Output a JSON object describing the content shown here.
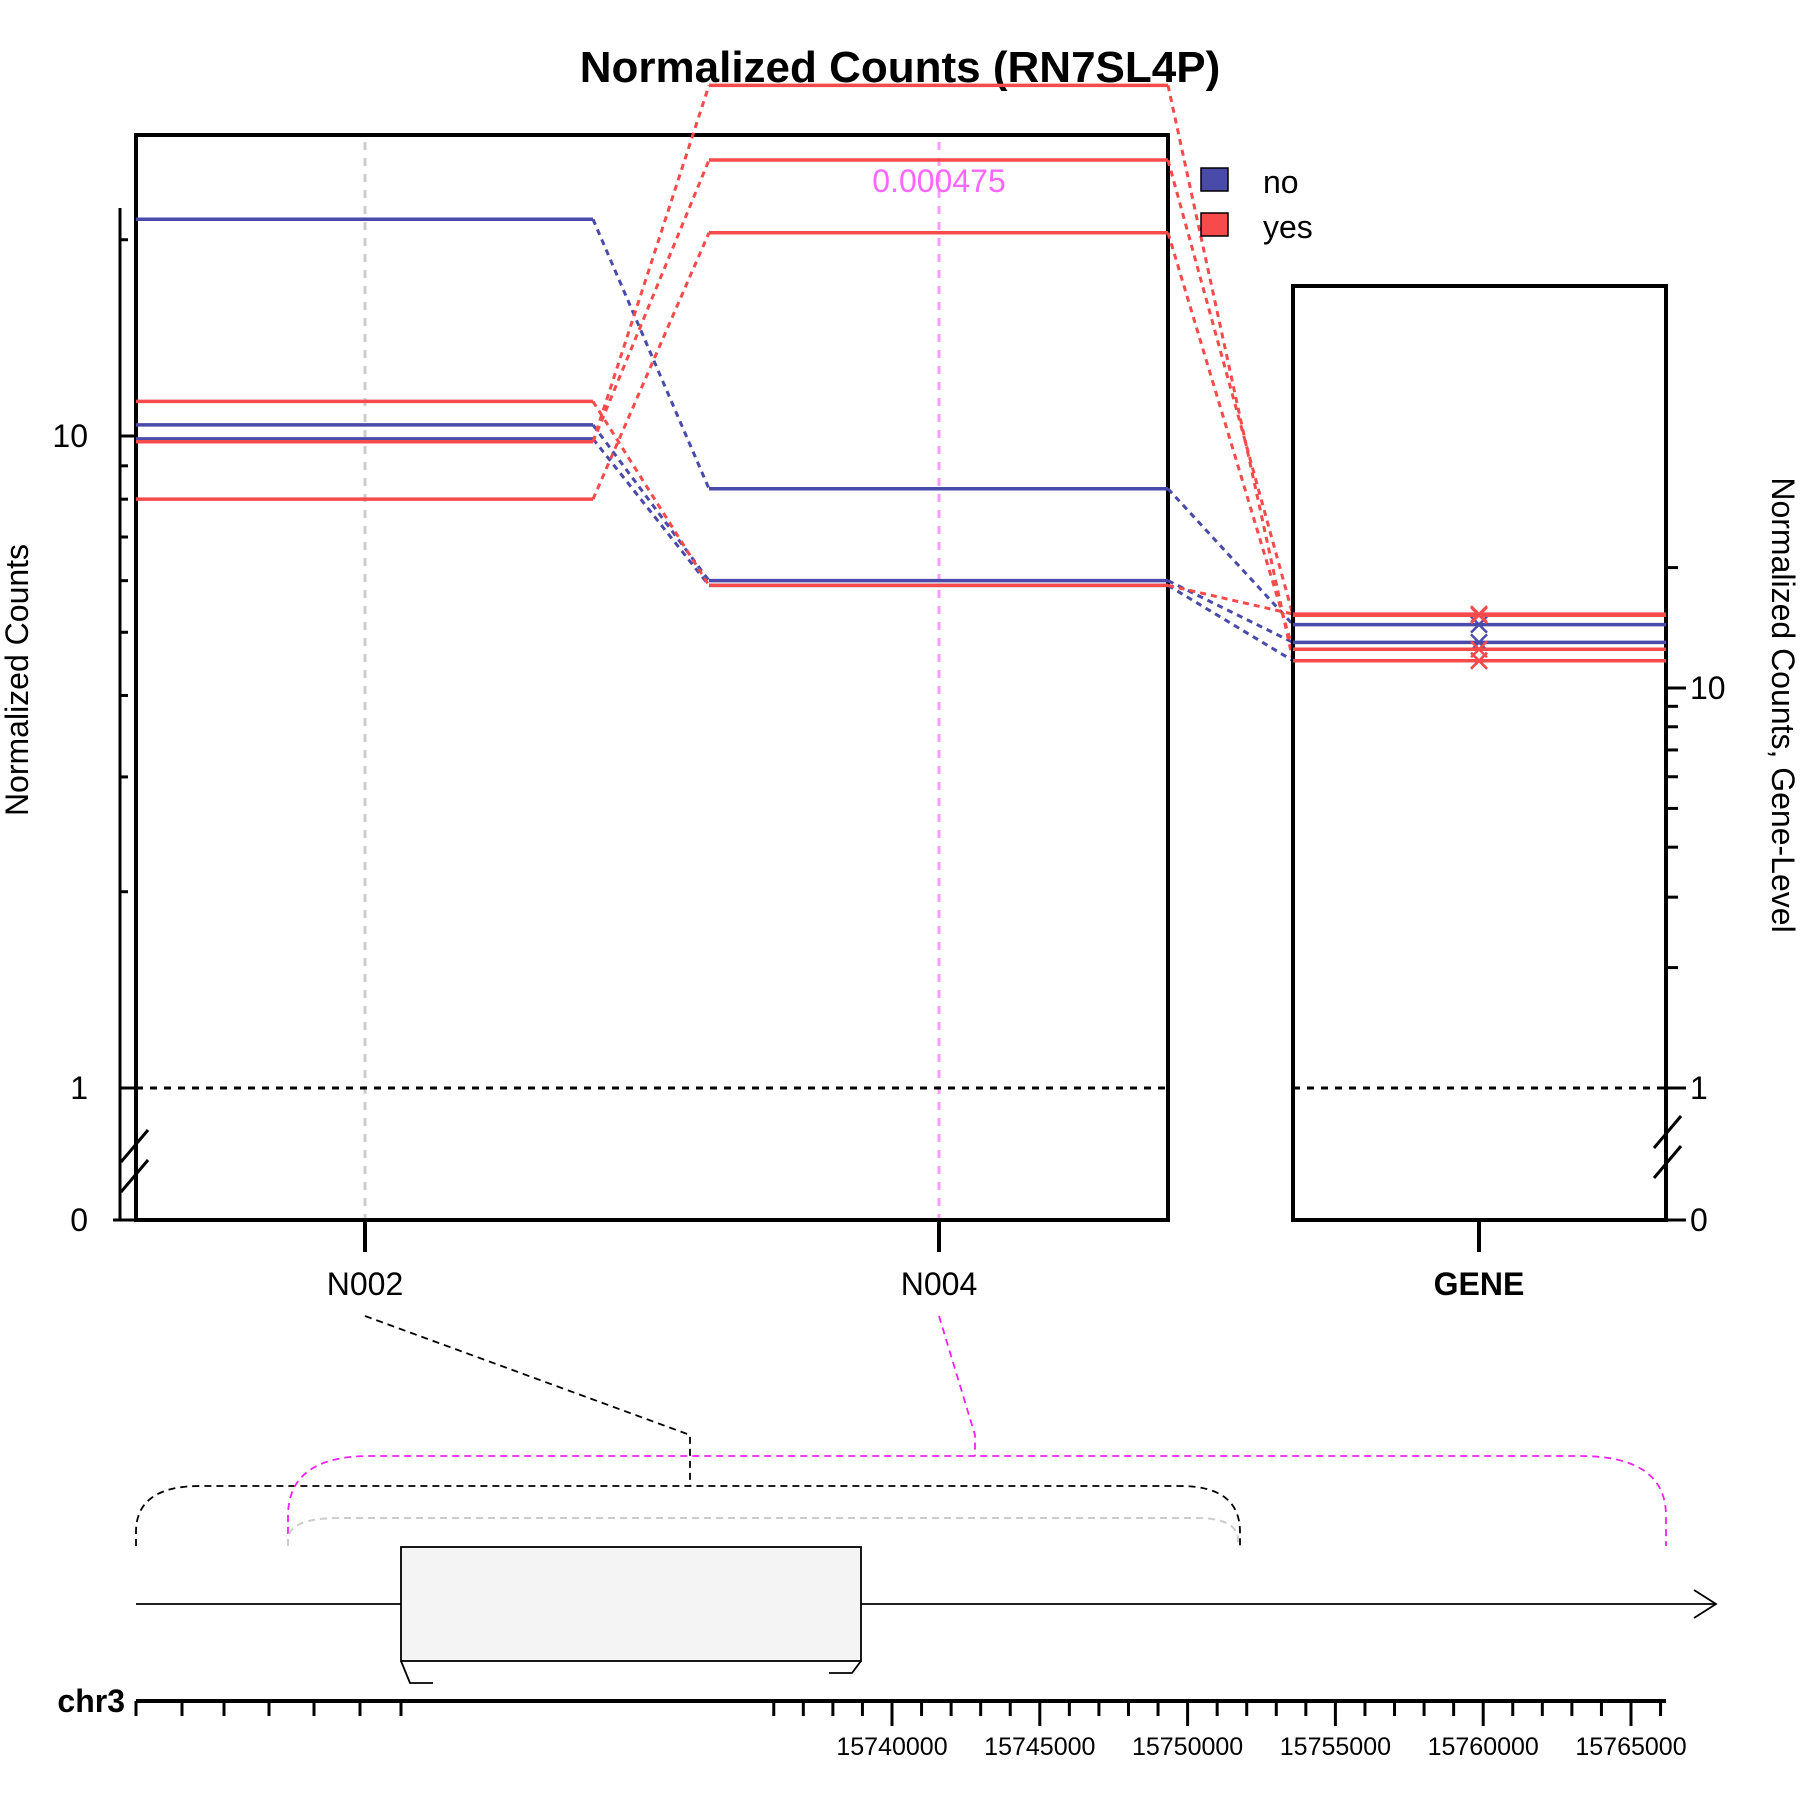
{
  "chart_data": {
    "type": "line",
    "title": "Normalized Counts (RN7SL4P)",
    "ylabel_left": "Normalized Counts",
    "ylabel_right": "Normalized Counts, Gene-Level",
    "y_scale": "log-with-zero-break",
    "yticks_left_labels": [
      "0",
      "1",
      "10"
    ],
    "yticks_right_labels": [
      "0",
      "1",
      "10"
    ],
    "categories": [
      "N002",
      "N004"
    ],
    "gene_category": "GENE",
    "pvalue_label": "0.000475",
    "legend": [
      {
        "label": "no",
        "color": "#4a4aaa"
      },
      {
        "label": "yes",
        "color": "#f74a4a"
      }
    ],
    "series": [
      {
        "group": "no",
        "color": "#4a4aaa",
        "values": [
          21.5,
          8.3
        ],
        "gene": 14.4
      },
      {
        "group": "no",
        "color": "#4a4aaa",
        "values": [
          10.4,
          6.0
        ],
        "gene": 13.0
      },
      {
        "group": "no",
        "color": "#4a4aaa",
        "values": [
          9.9,
          5.9
        ],
        "gene": 11.7
      },
      {
        "group": "yes",
        "color": "#f74a4a",
        "values": [
          11.3,
          5.9
        ],
        "gene": 15.3
      },
      {
        "group": "yes",
        "color": "#f74a4a",
        "values": [
          9.8,
          26.5
        ],
        "gene": 15.2
      },
      {
        "group": "yes",
        "color": "#f74a4a",
        "values": [
          8.0,
          20.5
        ],
        "gene": 12.5
      },
      {
        "group": "yes",
        "color": "#f74a4a",
        "values": [
          9.8,
          34.5
        ],
        "gene": 11.7
      }
    ],
    "genome": {
      "chrom": "chr3",
      "tick_labels": [
        "15740000",
        "15745000",
        "15750000",
        "15755000",
        "15760000",
        "15765000"
      ]
    }
  }
}
